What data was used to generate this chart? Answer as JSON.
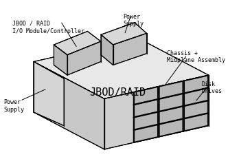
{
  "bg_color": "#f0f0f0",
  "line_color": "#000000",
  "face_color_top": "#e8e8e8",
  "face_color_side": "#d0d0d0",
  "face_color_front": "#c0c0c0",
  "title": "JBOD/RAID",
  "labels": {
    "jbod_raid_io": "JBOD / RAID\nI/O Module/Controller",
    "power_supply_top": "Power\nSupply",
    "chassis": "Chassis +\nMidplane Assembly",
    "disk_drives": "Disk\nDrives",
    "power_supply_left": "Power\nSupply"
  }
}
